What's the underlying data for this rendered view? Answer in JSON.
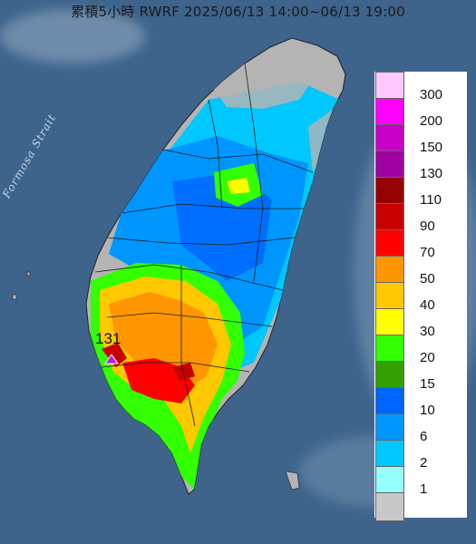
{
  "title": "累積5小時 RWRF 2025/06/13 14:00~06/13 19:00",
  "sea_label": "Formosa Strait",
  "peak": {
    "value_label": "131",
    "marker": "triangle-marker-icon"
  },
  "colors": {
    "sea": "#3e648c",
    "land_dry": "#b4b4b4",
    "marker": "#b020e0"
  },
  "legend": {
    "units_hint": "mm",
    "items": [
      {
        "label": "300",
        "color": "#ffc8ff"
      },
      {
        "label": "200",
        "color": "#ff00ff"
      },
      {
        "label": "150",
        "color": "#c800c8"
      },
      {
        "label": "130",
        "color": "#a000a0"
      },
      {
        "label": "110",
        "color": "#960000"
      },
      {
        "label": "90",
        "color": "#c80000"
      },
      {
        "label": "70",
        "color": "#ff0000"
      },
      {
        "label": "50",
        "color": "#ff9600"
      },
      {
        "label": "40",
        "color": "#ffc800"
      },
      {
        "label": "30",
        "color": "#ffff00"
      },
      {
        "label": "20",
        "color": "#32ff00"
      },
      {
        "label": "15",
        "color": "#32a000"
      },
      {
        "label": "10",
        "color": "#0064ff"
      },
      {
        "label": "6",
        "color": "#0096ff"
      },
      {
        "label": "2",
        "color": "#00c8ff"
      },
      {
        "label": "1",
        "color": "#96ffff"
      },
      {
        "label": "",
        "color": "#c8c8c8"
      }
    ]
  }
}
